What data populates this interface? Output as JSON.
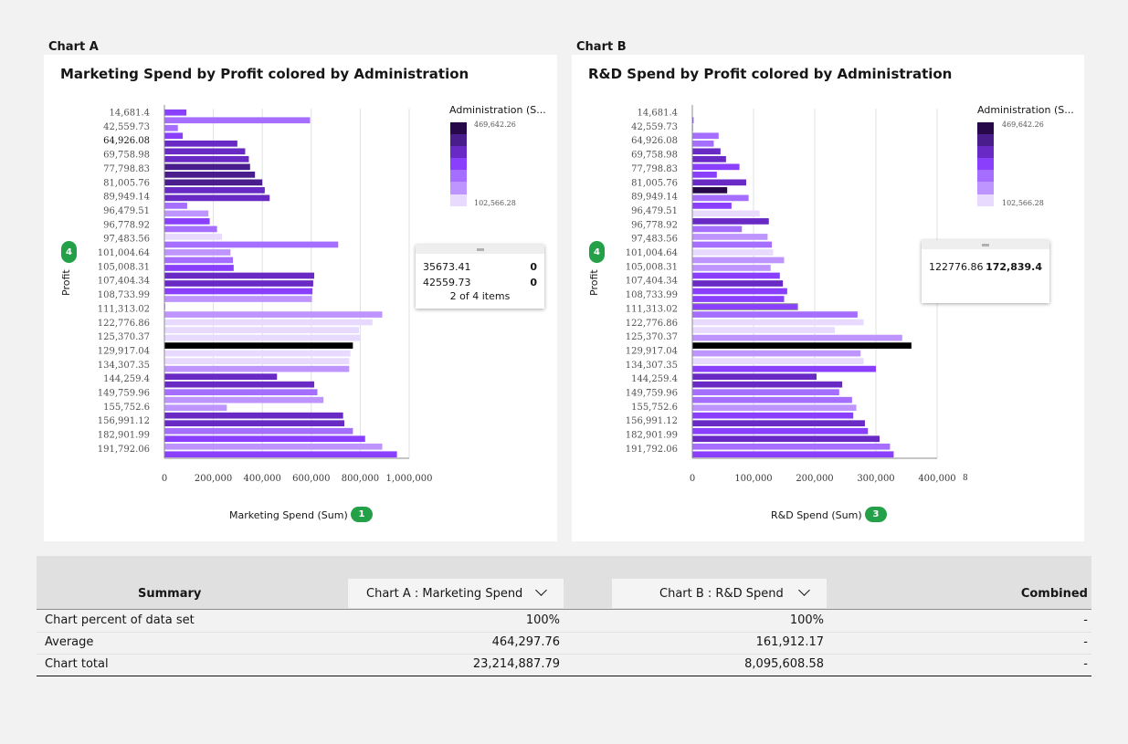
{
  "charts_header": {
    "a_label": "Chart A",
    "b_label": "Chart B"
  },
  "profit_ticks": [
    "14,681.4",
    "42,559.73",
    "64,926.08",
    "69,758.98",
    "77,798.83",
    "81,005.76",
    "89,949.14",
    "96,479.51",
    "96,778.92",
    "97,483.56",
    "101,004.64",
    "105,008.31",
    "107,404.34",
    "108,733.99",
    "111,313.02",
    "122,776.86",
    "125,370.37",
    "129,917.04",
    "134,307.35",
    "144,259.4",
    "149,759.96",
    "155,752.6",
    "156,991.12",
    "182,901.99",
    "191,792.06"
  ],
  "chart_data": [
    {
      "type": "bar",
      "orientation": "horizontal",
      "title": "Marketing Spend by Profit colored by Administration",
      "xlabel": "Marketing Spend (Sum)",
      "ylabel": "Profit",
      "x_ticks": [
        "0",
        "200,000",
        "400,000",
        "600,000",
        "800,000",
        "1,000,000"
      ],
      "xlim": [
        0,
        1000000
      ],
      "x_pill": "1",
      "y_pill": "4",
      "values": [
        90000,
        595000,
        55000,
        75000,
        298000,
        330000,
        345000,
        350000,
        370000,
        400000,
        410000,
        430000,
        93000,
        180000,
        185000,
        215000,
        235000,
        710000,
        270000,
        280000,
        283000,
        612000,
        608000,
        605000,
        603000,
        3000,
        890000,
        850000,
        795000,
        800000,
        770000,
        760000,
        755000,
        755000,
        460000,
        612000,
        625000,
        650000,
        255000,
        730000,
        735000,
        770000,
        820000,
        890000,
        950000
      ],
      "color_levels": [
        3,
        4,
        4,
        3,
        2,
        2,
        2,
        1,
        1,
        1,
        2,
        2,
        4,
        5,
        3,
        4,
        6,
        4,
        5,
        4,
        3,
        2,
        2,
        3,
        5,
        3,
        5,
        6,
        6,
        6,
        7,
        6,
        6,
        5,
        2,
        2,
        4,
        5,
        5,
        2,
        2,
        4,
        3,
        5,
        3
      ],
      "selected_tick": "64,926.08",
      "tooltip": {
        "rows": [
          {
            "label": "35673.41",
            "value": "0"
          },
          {
            "label": "42559.73",
            "value": "0"
          }
        ],
        "footer": "2 of 4 items"
      }
    },
    {
      "type": "bar",
      "orientation": "horizontal",
      "title": "R&D Spend by Profit colored by Administration",
      "xlabel": "R&D Spend (Sum)",
      "ylabel": "Profit",
      "x_ticks": [
        "0",
        "100,000",
        "200,000",
        "300,000",
        "400,000"
      ],
      "xlim": [
        0,
        400000
      ],
      "x_extra_label": "8",
      "x_pill": "3",
      "y_pill": "4",
      "values": [
        0,
        2000,
        1000,
        43000,
        35000,
        46000,
        55000,
        77000,
        40000,
        88000,
        57000,
        92000,
        64000,
        110000,
        125000,
        81000,
        123000,
        130000,
        132000,
        150000,
        128000,
        143000,
        148000,
        155000,
        150000,
        172000,
        270000,
        280000,
        233000,
        343000,
        358000,
        275000,
        280000,
        300000,
        203000,
        245000,
        240000,
        261000,
        268000,
        263000,
        282000,
        287000,
        306000,
        323000,
        329000
      ],
      "color_levels": [
        2,
        3,
        2,
        4,
        4,
        2,
        2,
        3,
        3,
        2,
        0,
        4,
        3,
        6,
        2,
        4,
        5,
        4,
        6,
        5,
        5,
        3,
        2,
        3,
        3,
        3,
        4,
        6,
        6,
        5,
        7,
        5,
        6,
        3,
        2,
        2,
        4,
        4,
        5,
        3,
        2,
        3,
        2,
        4,
        3
      ],
      "highlight_index": 25,
      "tooltip": {
        "rows": [
          {
            "label": "122776.86",
            "value": "172,839.4"
          }
        ]
      }
    }
  ],
  "legend": {
    "title": "Administration (S...",
    "max": "469,642.26",
    "min": "102,566.28",
    "colors": [
      "#27094a",
      "#491d8b",
      "#6929c4",
      "#8a3ffc",
      "#a56eff",
      "#be95ff",
      "#e8daff"
    ]
  },
  "table": {
    "summary_header": "Summary",
    "col_a": "Chart A : Marketing Spend",
    "col_b": "Chart B : R&D Spend",
    "col_combined": "Combined",
    "rows": [
      {
        "label": "Chart percent of data set",
        "a": "100%",
        "b": "100%",
        "c": "-"
      },
      {
        "label": "Average",
        "a": "464,297.76",
        "b": "161,912.17",
        "c": "-"
      },
      {
        "label": "Chart total",
        "a": "23,214,887.79",
        "b": "8,095,608.58",
        "c": "-"
      }
    ]
  }
}
